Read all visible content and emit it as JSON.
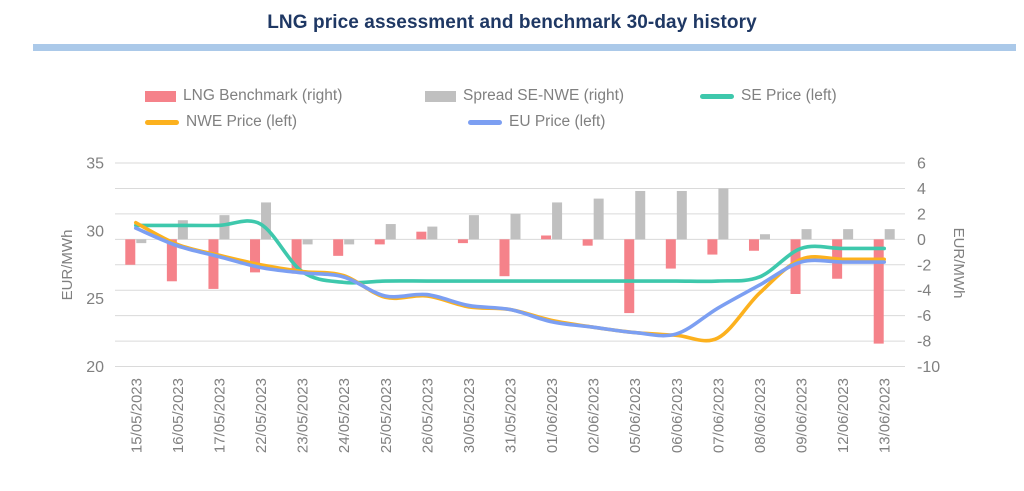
{
  "title": "LNG price assessment and benchmark 30-day history",
  "colors": {
    "title": "#1F3864",
    "title_rule": "#ABC9E9",
    "benchmark_bar": "#F5828A",
    "spread_bar": "#C0C0C0",
    "se_line": "#3EC8AC",
    "nwe_line": "#FCB11E",
    "eu_line": "#7C9FF2",
    "grid": "#DADADA",
    "axis_text": "#808080"
  },
  "legend": {
    "rows": [
      [
        {
          "id": "lng-benchmark",
          "label": "LNG Benchmark (right)",
          "marker": "bar"
        },
        {
          "id": "spread-se-nwe",
          "label": "Spread SE-NWE (right)",
          "marker": "bar"
        },
        {
          "id": "se-price",
          "label": "SE Price (left)",
          "marker": "line"
        }
      ],
      [
        {
          "id": "nwe-price",
          "label": "NWE Price (left)",
          "marker": "line"
        },
        {
          "id": "eu-price",
          "label": "EU Price (left)",
          "marker": "line"
        }
      ]
    ]
  },
  "chart_data": {
    "type": "combo-bar-line",
    "grid": "horizontal",
    "categories": [
      "15/05/2023",
      "16/05/2023",
      "17/05/2023",
      "22/05/2023",
      "23/05/2023",
      "24/05/2023",
      "25/05/2023",
      "26/05/2023",
      "30/05/2023",
      "31/05/2023",
      "01/06/2023",
      "02/06/2023",
      "05/06/2023",
      "06/06/2023",
      "07/06/2023",
      "08/06/2023",
      "09/06/2023",
      "12/06/2023",
      "13/06/2023"
    ],
    "left_axis": {
      "label": "EUR/MWh",
      "min": 20,
      "max": 35,
      "ticks": [
        35,
        30,
        25,
        20
      ]
    },
    "right_axis": {
      "label": "EUR/MWh",
      "min": -10,
      "max": 6,
      "ticks": [
        6,
        4,
        2,
        0,
        -2,
        -4,
        -6,
        -8,
        -10
      ]
    },
    "series": [
      {
        "id": "lng-benchmark",
        "name": "LNG Benchmark (right)",
        "type": "bar",
        "axis": "right",
        "color": "#F5828A",
        "values": [
          -2.0,
          -3.3,
          -3.9,
          -2.6,
          -2.7,
          -1.3,
          -0.4,
          0.6,
          -0.3,
          -2.9,
          0.3,
          -0.5,
          -5.8,
          -2.3,
          -1.2,
          -0.9,
          -4.3,
          -3.1,
          -8.2
        ]
      },
      {
        "id": "spread-se-nwe",
        "name": "Spread SE-NWE (right)",
        "type": "bar",
        "axis": "right",
        "color": "#C0C0C0",
        "values": [
          -0.3,
          1.5,
          1.9,
          2.9,
          -0.4,
          -0.4,
          1.2,
          1.0,
          1.9,
          2.0,
          2.9,
          3.2,
          3.8,
          3.8,
          4.0,
          0.4,
          0.8,
          0.8,
          0.8
        ]
      },
      {
        "id": "se-price",
        "name": "SE Price (left)",
        "type": "line",
        "axis": "left",
        "color": "#3EC8AC",
        "values": [
          30.4,
          30.4,
          30.4,
          30.5,
          27.0,
          26.2,
          26.3,
          26.3,
          26.3,
          26.3,
          26.3,
          26.3,
          26.3,
          26.3,
          26.3,
          26.6,
          28.7,
          28.7,
          28.7
        ]
      },
      {
        "id": "nwe-price",
        "name": "NWE Price (left)",
        "type": "line",
        "axis": "left",
        "color": "#FCB11E",
        "values": [
          30.6,
          29.0,
          28.2,
          27.5,
          27.0,
          26.7,
          25.1,
          25.2,
          24.4,
          24.2,
          23.4,
          22.9,
          22.5,
          22.3,
          22.1,
          25.4,
          27.9,
          27.9,
          27.9
        ]
      },
      {
        "id": "eu-price",
        "name": "EU Price (left)",
        "type": "line",
        "axis": "left",
        "color": "#7C9FF2",
        "values": [
          30.2,
          28.9,
          28.1,
          27.3,
          26.9,
          26.6,
          25.2,
          25.3,
          24.5,
          24.2,
          23.3,
          22.9,
          22.5,
          22.4,
          24.3,
          26.0,
          27.7,
          27.7,
          27.7
        ]
      }
    ]
  }
}
